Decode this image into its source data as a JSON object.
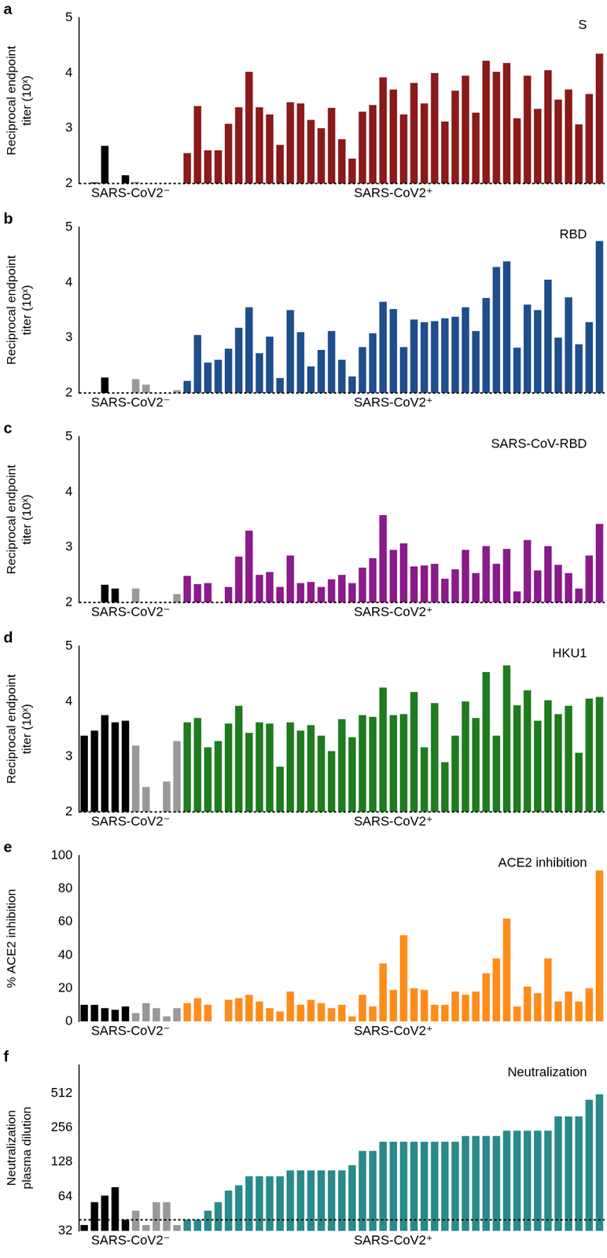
{
  "chart_data": [
    {
      "type": "bar",
      "panel": "a",
      "title": "S",
      "y_label": [
        "Reciprocal endpoint",
        "titer (10ˣ)"
      ],
      "categories": [
        null,
        null,
        null,
        null,
        null,
        null,
        null,
        null,
        null,
        null,
        null,
        null,
        null,
        null,
        null,
        null,
        null,
        null,
        null,
        null,
        null,
        null,
        null,
        null,
        null,
        null,
        null,
        null,
        null,
        null,
        null,
        null,
        null,
        null,
        null,
        null,
        null,
        null,
        null,
        null,
        null,
        null,
        null,
        null,
        null,
        null,
        null,
        null,
        null,
        null,
        null
      ],
      "values": [
        2,
        2.02,
        2.68,
        2,
        2.15,
        2.03,
        2,
        2,
        2,
        2,
        2.55,
        3.4,
        2.6,
        2.6,
        3.08,
        3.38,
        4.02,
        3.38,
        3.25,
        2.7,
        3.47,
        3.45,
        3.15,
        3.0,
        3.37,
        2.8,
        2.45,
        3.3,
        3.42,
        3.92,
        3.7,
        3.25,
        3.82,
        3.45,
        4.0,
        3.12,
        3.68,
        3.95,
        3.28,
        4.22,
        4.02,
        4.18,
        3.18,
        3.95,
        3.35,
        4.05,
        3.52,
        3.7,
        3.07,
        3.62,
        4.35
      ],
      "colors": [
        "#000000",
        "#000000",
        "#000000",
        "#000000",
        "#000000",
        "#999999",
        "#999999",
        "#999999",
        "#999999",
        "#999999",
        "#8b1a1a",
        "#8b1a1a",
        "#8b1a1a",
        "#8b1a1a",
        "#8b1a1a",
        "#8b1a1a",
        "#8b1a1a",
        "#8b1a1a",
        "#8b1a1a",
        "#8b1a1a",
        "#8b1a1a",
        "#8b1a1a",
        "#8b1a1a",
        "#8b1a1a",
        "#8b1a1a",
        "#8b1a1a",
        "#8b1a1a",
        "#8b1a1a",
        "#8b1a1a",
        "#8b1a1a",
        "#8b1a1a",
        "#8b1a1a",
        "#8b1a1a",
        "#8b1a1a",
        "#8b1a1a",
        "#8b1a1a",
        "#8b1a1a",
        "#8b1a1a",
        "#8b1a1a",
        "#8b1a1a",
        "#8b1a1a",
        "#8b1a1a",
        "#8b1a1a",
        "#8b1a1a",
        "#8b1a1a",
        "#8b1a1a",
        "#8b1a1a",
        "#8b1a1a",
        "#8b1a1a",
        "#8b1a1a",
        "#8b1a1a"
      ],
      "ylim": [
        2,
        5
      ],
      "yticks": [
        2,
        3,
        4,
        5
      ],
      "cutoff": 2,
      "groups": [
        {
          "label": "SARS-CoV2⁻",
          "count": 10
        },
        {
          "label": "SARS-CoV2⁺",
          "count": 41
        }
      ],
      "grid": false,
      "tick_labels": "y"
    },
    {
      "type": "bar",
      "panel": "b",
      "title": "RBD",
      "y_label": [
        "Reciprocal endpoint",
        "titer (10ˣ)"
      ],
      "categories": [
        null,
        null,
        null,
        null,
        null,
        null,
        null,
        null,
        null,
        null,
        null,
        null,
        null,
        null,
        null,
        null,
        null,
        null,
        null,
        null,
        null,
        null,
        null,
        null,
        null,
        null,
        null,
        null,
        null,
        null,
        null,
        null,
        null,
        null,
        null,
        null,
        null,
        null,
        null,
        null,
        null,
        null,
        null,
        null,
        null,
        null,
        null,
        null,
        null,
        null,
        null
      ],
      "values": [
        2,
        2,
        2.28,
        2,
        2,
        2.25,
        2.15,
        2,
        2,
        2.05,
        2.22,
        3.05,
        2.55,
        2.6,
        2.8,
        3.18,
        3.55,
        2.72,
        3.02,
        2.27,
        3.5,
        3.1,
        2.48,
        2.78,
        3.12,
        2.6,
        2.3,
        2.83,
        3.08,
        3.65,
        3.52,
        2.83,
        3.33,
        3.28,
        3.3,
        3.35,
        3.38,
        3.55,
        3.12,
        3.72,
        4.28,
        4.38,
        2.82,
        3.6,
        3.5,
        4.05,
        3.0,
        3.73,
        2.88,
        3.28,
        4.75
      ],
      "colors": [
        "#000000",
        "#000000",
        "#000000",
        "#000000",
        "#000000",
        "#999999",
        "#999999",
        "#999999",
        "#999999",
        "#999999",
        "#1f4e8c",
        "#1f4e8c",
        "#1f4e8c",
        "#1f4e8c",
        "#1f4e8c",
        "#1f4e8c",
        "#1f4e8c",
        "#1f4e8c",
        "#1f4e8c",
        "#1f4e8c",
        "#1f4e8c",
        "#1f4e8c",
        "#1f4e8c",
        "#1f4e8c",
        "#1f4e8c",
        "#1f4e8c",
        "#1f4e8c",
        "#1f4e8c",
        "#1f4e8c",
        "#1f4e8c",
        "#1f4e8c",
        "#1f4e8c",
        "#1f4e8c",
        "#1f4e8c",
        "#1f4e8c",
        "#1f4e8c",
        "#1f4e8c",
        "#1f4e8c",
        "#1f4e8c",
        "#1f4e8c",
        "#1f4e8c",
        "#1f4e8c",
        "#1f4e8c",
        "#1f4e8c",
        "#1f4e8c",
        "#1f4e8c",
        "#1f4e8c",
        "#1f4e8c",
        "#1f4e8c",
        "#1f4e8c",
        "#1f4e8c"
      ],
      "ylim": [
        2,
        5
      ],
      "yticks": [
        2,
        3,
        4,
        5
      ],
      "cutoff": 2,
      "groups": [
        {
          "label": "SARS-CoV2⁻",
          "count": 10
        },
        {
          "label": "SARS-CoV2⁺",
          "count": 41
        }
      ],
      "grid": false,
      "tick_labels": "y"
    },
    {
      "type": "bar",
      "panel": "c",
      "title": "SARS-CoV-RBD",
      "y_label": [
        "Reciprocal endpoint",
        "titer (10ˣ)"
      ],
      "categories": [
        null,
        null,
        null,
        null,
        null,
        null,
        null,
        null,
        null,
        null,
        null,
        null,
        null,
        null,
        null,
        null,
        null,
        null,
        null,
        null,
        null,
        null,
        null,
        null,
        null,
        null,
        null,
        null,
        null,
        null,
        null,
        null,
        null,
        null,
        null,
        null,
        null,
        null,
        null,
        null,
        null,
        null,
        null,
        null,
        null,
        null,
        null,
        null,
        null,
        null,
        null
      ],
      "values": [
        2,
        2,
        2.32,
        2.25,
        2,
        2.25,
        2,
        2,
        2,
        2.15,
        2.48,
        2.33,
        2.35,
        2.0,
        2.28,
        2.83,
        3.3,
        2.5,
        2.55,
        2.28,
        2.85,
        2.35,
        2.37,
        2.28,
        2.42,
        2.5,
        2.35,
        2.63,
        2.8,
        3.58,
        2.95,
        3.07,
        2.65,
        2.67,
        2.7,
        2.43,
        2.6,
        2.95,
        2.53,
        3.02,
        2.7,
        2.97,
        2.2,
        3.13,
        2.58,
        3.02,
        2.68,
        2.53,
        2.25,
        2.85,
        3.42
      ],
      "colors": [
        "#000000",
        "#000000",
        "#000000",
        "#000000",
        "#000000",
        "#999999",
        "#999999",
        "#999999",
        "#999999",
        "#999999",
        "#8b1a8b",
        "#8b1a8b",
        "#8b1a8b",
        "#8b1a8b",
        "#8b1a8b",
        "#8b1a8b",
        "#8b1a8b",
        "#8b1a8b",
        "#8b1a8b",
        "#8b1a8b",
        "#8b1a8b",
        "#8b1a8b",
        "#8b1a8b",
        "#8b1a8b",
        "#8b1a8b",
        "#8b1a8b",
        "#8b1a8b",
        "#8b1a8b",
        "#8b1a8b",
        "#8b1a8b",
        "#8b1a8b",
        "#8b1a8b",
        "#8b1a8b",
        "#8b1a8b",
        "#8b1a8b",
        "#8b1a8b",
        "#8b1a8b",
        "#8b1a8b",
        "#8b1a8b",
        "#8b1a8b",
        "#8b1a8b",
        "#8b1a8b",
        "#8b1a8b",
        "#8b1a8b",
        "#8b1a8b",
        "#8b1a8b",
        "#8b1a8b",
        "#8b1a8b",
        "#8b1a8b",
        "#8b1a8b",
        "#8b1a8b"
      ],
      "ylim": [
        2,
        5
      ],
      "yticks": [
        2,
        3,
        4,
        5
      ],
      "cutoff": 2,
      "groups": [
        {
          "label": "SARS-CoV2⁻",
          "count": 10
        },
        {
          "label": "SARS-CoV2⁺",
          "count": 41
        }
      ],
      "grid": false,
      "tick_labels": "y"
    },
    {
      "type": "bar",
      "panel": "d",
      "title": "HKU1",
      "y_label": [
        "Reciprocal endpoint",
        "titer (10ˣ)"
      ],
      "categories": [
        null,
        null,
        null,
        null,
        null,
        null,
        null,
        null,
        null,
        null,
        null,
        null,
        null,
        null,
        null,
        null,
        null,
        null,
        null,
        null,
        null,
        null,
        null,
        null,
        null,
        null,
        null,
        null,
        null,
        null,
        null,
        null,
        null,
        null,
        null,
        null,
        null,
        null,
        null,
        null,
        null,
        null,
        null,
        null,
        null,
        null,
        null,
        null,
        null,
        null,
        null
      ],
      "values": [
        3.38,
        3.47,
        3.75,
        3.62,
        3.65,
        3.2,
        2.45,
        2,
        2.55,
        3.28,
        3.62,
        3.7,
        3.17,
        3.28,
        3.6,
        3.92,
        3.43,
        3.62,
        3.6,
        2.82,
        3.62,
        3.47,
        3.57,
        3.38,
        3.1,
        3.68,
        3.35,
        3.75,
        3.72,
        4.25,
        3.75,
        3.77,
        4.17,
        3.17,
        3.97,
        2.9,
        3.38,
        4.0,
        3.7,
        4.53,
        3.38,
        4.65,
        3.93,
        4.2,
        3.65,
        4.02,
        3.77,
        3.92,
        3.07,
        4.05,
        4.08
      ],
      "colors": [
        "#000000",
        "#000000",
        "#000000",
        "#000000",
        "#000000",
        "#999999",
        "#999999",
        "#999999",
        "#999999",
        "#999999",
        "#1e7b1e",
        "#1e7b1e",
        "#1e7b1e",
        "#1e7b1e",
        "#1e7b1e",
        "#1e7b1e",
        "#1e7b1e",
        "#1e7b1e",
        "#1e7b1e",
        "#1e7b1e",
        "#1e7b1e",
        "#1e7b1e",
        "#1e7b1e",
        "#1e7b1e",
        "#1e7b1e",
        "#1e7b1e",
        "#1e7b1e",
        "#1e7b1e",
        "#1e7b1e",
        "#1e7b1e",
        "#1e7b1e",
        "#1e7b1e",
        "#1e7b1e",
        "#1e7b1e",
        "#1e7b1e",
        "#1e7b1e",
        "#1e7b1e",
        "#1e7b1e",
        "#1e7b1e",
        "#1e7b1e",
        "#1e7b1e",
        "#1e7b1e",
        "#1e7b1e",
        "#1e7b1e",
        "#1e7b1e",
        "#1e7b1e",
        "#1e7b1e",
        "#1e7b1e",
        "#1e7b1e",
        "#1e7b1e",
        "#1e7b1e"
      ],
      "ylim": [
        2,
        5
      ],
      "yticks": [
        2,
        3,
        4,
        5
      ],
      "cutoff": 2,
      "groups": [
        {
          "label": "SARS-CoV2⁻",
          "count": 10
        },
        {
          "label": "SARS-CoV2⁺",
          "count": 41
        }
      ],
      "grid": false,
      "tick_labels": "y"
    },
    {
      "type": "bar",
      "panel": "e",
      "title": "ACE2 inhibition",
      "y_label": [
        "% ACE2 inhibition"
      ],
      "categories": [
        null,
        null,
        null,
        null,
        null,
        null,
        null,
        null,
        null,
        null,
        null,
        null,
        null,
        null,
        null,
        null,
        null,
        null,
        null,
        null,
        null,
        null,
        null,
        null,
        null,
        null,
        null,
        null,
        null,
        null,
        null,
        null,
        null,
        null,
        null,
        null,
        null,
        null,
        null,
        null,
        null,
        null,
        null,
        null,
        null,
        null,
        null,
        null,
        null,
        null,
        null
      ],
      "values": [
        10,
        10,
        8,
        7,
        9,
        5,
        11,
        8,
        3,
        8,
        11,
        14,
        10,
        0,
        13,
        14,
        16,
        12,
        8,
        6,
        18,
        10,
        13,
        11,
        8,
        10,
        3,
        16,
        9,
        35,
        19,
        52,
        20,
        19,
        10,
        10,
        18,
        16,
        18,
        29,
        38,
        62,
        9,
        21,
        17,
        38,
        12,
        18,
        12,
        20,
        91
      ],
      "colors": [
        "#000000",
        "#000000",
        "#000000",
        "#000000",
        "#000000",
        "#999999",
        "#999999",
        "#999999",
        "#999999",
        "#999999",
        "#ff8c1a",
        "#ff8c1a",
        "#ff8c1a",
        "#ff8c1a",
        "#ff8c1a",
        "#ff8c1a",
        "#ff8c1a",
        "#ff8c1a",
        "#ff8c1a",
        "#ff8c1a",
        "#ff8c1a",
        "#ff8c1a",
        "#ff8c1a",
        "#ff8c1a",
        "#ff8c1a",
        "#ff8c1a",
        "#ff8c1a",
        "#ff8c1a",
        "#ff8c1a",
        "#ff8c1a",
        "#ff8c1a",
        "#ff8c1a",
        "#ff8c1a",
        "#ff8c1a",
        "#ff8c1a",
        "#ff8c1a",
        "#ff8c1a",
        "#ff8c1a",
        "#ff8c1a",
        "#ff8c1a",
        "#ff8c1a",
        "#ff8c1a",
        "#ff8c1a",
        "#ff8c1a",
        "#ff8c1a",
        "#ff8c1a",
        "#ff8c1a",
        "#ff8c1a",
        "#ff8c1a",
        "#ff8c1a",
        "#ff8c1a"
      ],
      "ylim": [
        0,
        100
      ],
      "yticks": [
        0,
        20,
        40,
        60,
        80,
        100
      ],
      "groups": [
        {
          "label": "SARS-CoV2⁻",
          "count": 10
        },
        {
          "label": "SARS-CoV2⁺",
          "count": 41
        }
      ],
      "grid": false,
      "tick_labels": "y"
    },
    {
      "type": "bar",
      "panel": "f",
      "title": "Neutralization",
      "y_label": [
        "Neutralization",
        "plasma dilution"
      ],
      "categories": [
        null,
        null,
        null,
        null,
        null,
        null,
        null,
        null,
        null,
        null,
        null,
        null,
        null,
        null,
        null,
        null,
        null,
        null,
        null,
        null,
        null,
        null,
        null,
        null,
        null,
        null,
        null,
        null,
        null,
        null,
        null,
        null,
        null,
        null,
        null,
        null,
        null,
        null,
        null,
        null,
        null,
        null,
        null,
        null,
        null,
        null,
        null,
        null,
        null,
        null,
        null
      ],
      "values": [
        36,
        57,
        65,
        77,
        40,
        48,
        36,
        57,
        57,
        36,
        40,
        40,
        48,
        57,
        72,
        80,
        96,
        96,
        96,
        96,
        108,
        108,
        108,
        108,
        108,
        108,
        120,
        160,
        160,
        192,
        192,
        192,
        192,
        192,
        192,
        192,
        192,
        216,
        216,
        216,
        216,
        240,
        240,
        240,
        240,
        240,
        320,
        320,
        320,
        448,
        500
      ],
      "colors": [
        "#000000",
        "#000000",
        "#000000",
        "#000000",
        "#000000",
        "#999999",
        "#999999",
        "#999999",
        "#999999",
        "#999999",
        "#2a8a8a",
        "#2a8a8a",
        "#2a8a8a",
        "#2a8a8a",
        "#2a8a8a",
        "#2a8a8a",
        "#2a8a8a",
        "#2a8a8a",
        "#2a8a8a",
        "#2a8a8a",
        "#2a8a8a",
        "#2a8a8a",
        "#2a8a8a",
        "#2a8a8a",
        "#2a8a8a",
        "#2a8a8a",
        "#2a8a8a",
        "#2a8a8a",
        "#2a8a8a",
        "#2a8a8a",
        "#2a8a8a",
        "#2a8a8a",
        "#2a8a8a",
        "#2a8a8a",
        "#2a8a8a",
        "#2a8a8a",
        "#2a8a8a",
        "#2a8a8a",
        "#2a8a8a",
        "#2a8a8a",
        "#2a8a8a",
        "#2a8a8a",
        "#2a8a8a",
        "#2a8a8a",
        "#2a8a8a",
        "#2a8a8a",
        "#2a8a8a",
        "#2a8a8a",
        "#2a8a8a",
        "#2a8a8a",
        "#2a8a8a"
      ],
      "log": "y",
      "ylim": [
        32,
        900
      ],
      "yticks": [
        32,
        64,
        128,
        256,
        512
      ],
      "cutoff": 40,
      "groups": [
        {
          "label": "SARS-CoV2⁻",
          "count": 10
        },
        {
          "label": "SARS-CoV2⁺",
          "count": 41
        }
      ],
      "grid": false,
      "tick_labels": "y"
    }
  ]
}
